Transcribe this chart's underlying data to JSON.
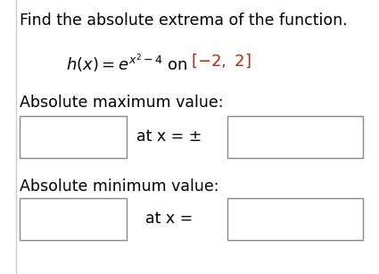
{
  "title_text": "Find the absolute extrema of the function.",
  "title_color": "#000000",
  "title_fontsize": 12.5,
  "interval_color": "#cc2200",
  "abs_max_label": "Absolute maximum value:",
  "abs_min_label": "Absolute minimum value:",
  "at_x_pm_text": "at x = ±",
  "at_x_eq_text": "at x =",
  "font_color": "#000000",
  "label_fontsize": 12.5,
  "box_color": "#888888",
  "background_color": "#ffffff",
  "fig_w": 4.25,
  "fig_h": 3.07,
  "dpi": 100
}
